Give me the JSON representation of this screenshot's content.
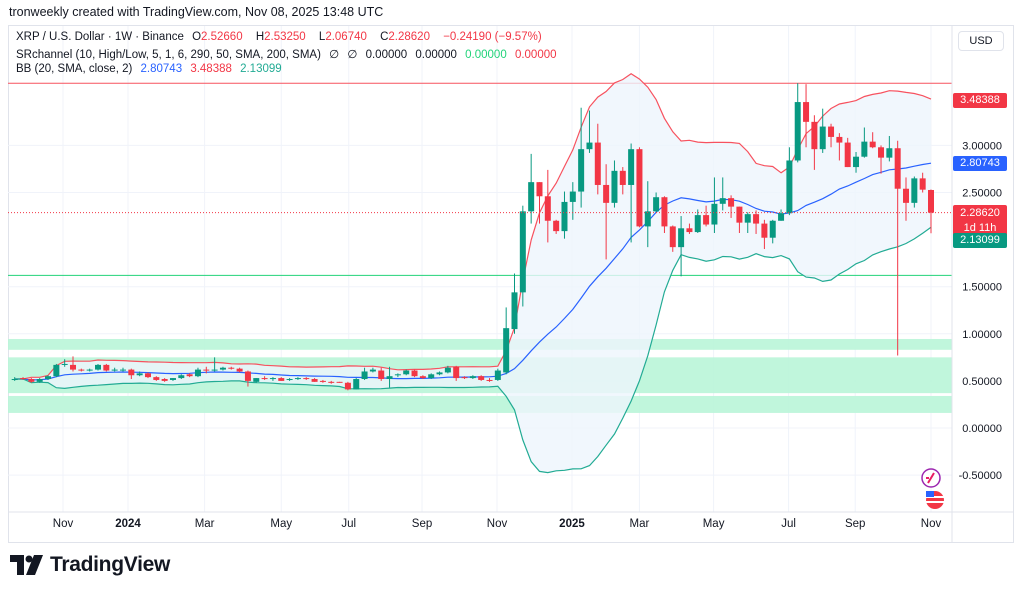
{
  "caption": "tronweekly created with TradingView.com, Nov 08, 2025 13:48 UTC",
  "legend": {
    "symbol": "XRP / U.S. Dollar · 1W · Binance",
    "o_label": "O",
    "o": "2.52660",
    "h_label": "H",
    "h": "2.53250",
    "l_label": "L",
    "l": "2.06740",
    "c_label": "C",
    "c": "2.28620",
    "change": "−0.24190 (−9.57%)",
    "sr_title": "SRchannel (10, High/Low, 5, 1, 6, 290, 50, SMA, 200, SMA)",
    "sr_v1": "∅",
    "sr_v2": "∅",
    "sr_v3": "0.00000",
    "sr_v4": "0.00000",
    "sr_v5": "0.00000",
    "sr_v6": "0.00000",
    "bb_title": "BB (20, SMA, close, 2)",
    "bb_basis": "2.80743",
    "bb_upper": "3.48388",
    "bb_lower": "2.13099"
  },
  "currency_button": "USD",
  "price_tags": {
    "upper": "3.48388",
    "basis": "2.80743",
    "last": "2.28620",
    "countdown": "1d 11h",
    "lower": "2.13099"
  },
  "brand": "TradingView",
  "colors": {
    "up": "#089981",
    "down": "#f23645",
    "bb_upper": "#f7525f",
    "bb_basis": "#2962ff",
    "bb_lower": "#22ab94",
    "zone": "#b9f5d8",
    "band_fill": "#eef5fc"
  },
  "chart_data": {
    "type": "candlestick",
    "title": "XRP / U.S. Dollar · 1W · Binance",
    "ylim": [
      -0.75,
      4.1
    ],
    "y_ticks": [
      "3.00000",
      "2.50000",
      "1.50000",
      "1.00000",
      "0.50000",
      "0.00000",
      "-0.50000"
    ],
    "y_tick_values": [
      3.0,
      2.5,
      1.5,
      1.0,
      0.5,
      0.0,
      -0.5
    ],
    "x_ticks": [
      {
        "label": "Nov",
        "week": 5.8
      },
      {
        "label": "2024",
        "week": 13.6
      },
      {
        "label": "Mar",
        "week": 22.8
      },
      {
        "label": "May",
        "week": 32
      },
      {
        "label": "Jul",
        "week": 40.1
      },
      {
        "label": "Sep",
        "week": 48.9
      },
      {
        "label": "Nov",
        "week": 57.9
      },
      {
        "label": "2025",
        "week": 66.9
      },
      {
        "label": "Mar",
        "week": 75
      },
      {
        "label": "May",
        "week": 83.9
      },
      {
        "label": "Jul",
        "week": 92.9
      },
      {
        "label": "Sep",
        "week": 100.9
      },
      {
        "label": "Nov",
        "week": 110
      }
    ],
    "bollinger": {
      "period": 20,
      "mult": 2
    },
    "sr_zones": [
      [
        0.83,
        0.945
      ],
      [
        0.37,
        0.75
      ],
      [
        0.16,
        0.34
      ]
    ],
    "sr_lines": [
      {
        "price": 3.66,
        "color": "#f7525f"
      },
      {
        "price": 1.62,
        "color": "#22d37a"
      }
    ],
    "ohlc": [
      [
        0.52,
        0.54,
        0.5,
        0.52
      ],
      [
        0.53,
        0.54,
        0.51,
        0.52
      ],
      [
        0.52,
        0.53,
        0.48,
        0.49
      ],
      [
        0.49,
        0.53,
        0.48,
        0.52
      ],
      [
        0.52,
        0.56,
        0.51,
        0.55
      ],
      [
        0.55,
        0.68,
        0.54,
        0.67
      ],
      [
        0.67,
        0.73,
        0.65,
        0.68
      ],
      [
        0.67,
        0.76,
        0.6,
        0.62
      ],
      [
        0.62,
        0.63,
        0.6,
        0.61
      ],
      [
        0.61,
        0.63,
        0.6,
        0.62
      ],
      [
        0.62,
        0.68,
        0.61,
        0.67
      ],
      [
        0.67,
        0.68,
        0.6,
        0.61
      ],
      [
        0.61,
        0.64,
        0.6,
        0.62
      ],
      [
        0.61,
        0.64,
        0.6,
        0.62
      ],
      [
        0.62,
        0.63,
        0.52,
        0.56
      ],
      [
        0.56,
        0.6,
        0.55,
        0.58
      ],
      [
        0.58,
        0.59,
        0.53,
        0.54
      ],
      [
        0.54,
        0.55,
        0.5,
        0.51
      ],
      [
        0.52,
        0.53,
        0.49,
        0.5
      ],
      [
        0.51,
        0.53,
        0.5,
        0.53
      ],
      [
        0.53,
        0.57,
        0.52,
        0.56
      ],
      [
        0.57,
        0.58,
        0.54,
        0.55
      ],
      [
        0.55,
        0.64,
        0.54,
        0.62
      ],
      [
        0.62,
        0.65,
        0.58,
        0.61
      ],
      [
        0.61,
        0.75,
        0.6,
        0.62
      ],
      [
        0.62,
        0.65,
        0.61,
        0.64
      ],
      [
        0.64,
        0.65,
        0.62,
        0.63
      ],
      [
        0.63,
        0.64,
        0.59,
        0.6
      ],
      [
        0.6,
        0.61,
        0.44,
        0.5
      ],
      [
        0.49,
        0.53,
        0.48,
        0.53
      ],
      [
        0.53,
        0.55,
        0.51,
        0.52
      ],
      [
        0.52,
        0.54,
        0.5,
        0.53
      ],
      [
        0.53,
        0.54,
        0.5,
        0.5
      ],
      [
        0.51,
        0.53,
        0.5,
        0.52
      ],
      [
        0.52,
        0.54,
        0.51,
        0.53
      ],
      [
        0.53,
        0.54,
        0.51,
        0.52
      ],
      [
        0.52,
        0.53,
        0.49,
        0.49
      ],
      [
        0.5,
        0.51,
        0.48,
        0.49
      ],
      [
        0.49,
        0.5,
        0.47,
        0.48
      ],
      [
        0.49,
        0.49,
        0.48,
        0.48
      ],
      [
        0.48,
        0.49,
        0.4,
        0.41
      ],
      [
        0.41,
        0.53,
        0.41,
        0.52
      ],
      [
        0.52,
        0.64,
        0.51,
        0.6
      ],
      [
        0.6,
        0.64,
        0.59,
        0.62
      ],
      [
        0.61,
        0.64,
        0.5,
        0.52
      ],
      [
        0.52,
        0.65,
        0.43,
        0.55
      ],
      [
        0.56,
        0.58,
        0.54,
        0.57
      ],
      [
        0.57,
        0.62,
        0.56,
        0.61
      ],
      [
        0.61,
        0.62,
        0.54,
        0.55
      ],
      [
        0.55,
        0.56,
        0.52,
        0.53
      ],
      [
        0.53,
        0.58,
        0.52,
        0.57
      ],
      [
        0.57,
        0.6,
        0.56,
        0.59
      ],
      [
        0.59,
        0.66,
        0.58,
        0.64
      ],
      [
        0.65,
        0.66,
        0.5,
        0.53
      ],
      [
        0.54,
        0.55,
        0.52,
        0.53
      ],
      [
        0.53,
        0.56,
        0.52,
        0.55
      ],
      [
        0.55,
        0.56,
        0.5,
        0.51
      ],
      [
        0.51,
        0.53,
        0.49,
        0.5
      ],
      [
        0.51,
        0.63,
        0.5,
        0.61
      ],
      [
        0.59,
        1.28,
        0.57,
        1.06
      ],
      [
        1.05,
        1.64,
        1.0,
        1.44
      ],
      [
        1.44,
        2.36,
        1.29,
        2.3
      ],
      [
        2.3,
        2.91,
        2.17,
        2.61
      ],
      [
        2.61,
        2.61,
        2.17,
        2.46
      ],
      [
        2.46,
        2.74,
        1.97,
        2.2
      ],
      [
        2.2,
        2.21,
        2.06,
        2.09
      ],
      [
        2.09,
        2.51,
        2.01,
        2.4
      ],
      [
        2.4,
        2.61,
        2.21,
        2.51
      ],
      [
        2.51,
        3.4,
        2.34,
        2.96
      ],
      [
        2.96,
        3.37,
        2.92,
        3.03
      ],
      [
        3.03,
        3.23,
        2.48,
        2.58
      ],
      [
        2.58,
        2.8,
        1.79,
        2.39
      ],
      [
        2.39,
        2.84,
        2.34,
        2.73
      ],
      [
        2.73,
        2.77,
        2.48,
        2.58
      ],
      [
        2.58,
        3.02,
        1.97,
        2.96
      ],
      [
        2.96,
        2.98,
        2.13,
        2.14
      ],
      [
        2.14,
        2.62,
        1.92,
        2.3
      ],
      [
        2.3,
        2.5,
        2.29,
        2.45
      ],
      [
        2.45,
        2.46,
        2.07,
        2.14
      ],
      [
        2.14,
        2.15,
        1.87,
        1.92
      ],
      [
        1.92,
        2.25,
        1.61,
        2.12
      ],
      [
        2.12,
        2.17,
        2.06,
        2.08
      ],
      [
        2.08,
        2.32,
        2.07,
        2.26
      ],
      [
        2.26,
        2.36,
        2.14,
        2.16
      ],
      [
        2.16,
        2.66,
        2.07,
        2.38
      ],
      [
        2.38,
        2.66,
        2.31,
        2.44
      ],
      [
        2.44,
        2.47,
        2.23,
        2.35
      ],
      [
        2.35,
        2.35,
        2.07,
        2.18
      ],
      [
        2.18,
        2.29,
        2.07,
        2.27
      ],
      [
        2.27,
        2.31,
        2.06,
        2.17
      ],
      [
        2.17,
        2.21,
        1.9,
        2.02
      ],
      [
        2.02,
        2.21,
        1.96,
        2.2
      ],
      [
        2.2,
        2.32,
        2.2,
        2.28
      ],
      [
        2.28,
        2.98,
        2.26,
        2.84
      ],
      [
        2.84,
        3.66,
        2.82,
        3.46
      ],
      [
        3.46,
        3.65,
        2.98,
        3.25
      ],
      [
        3.25,
        3.32,
        2.74,
        2.96
      ],
      [
        2.96,
        3.39,
        2.92,
        3.2
      ],
      [
        3.2,
        3.23,
        2.98,
        3.09
      ],
      [
        3.09,
        3.13,
        2.84,
        3.03
      ],
      [
        3.03,
        3.08,
        2.77,
        2.77
      ],
      [
        2.77,
        2.93,
        2.71,
        2.88
      ],
      [
        2.88,
        3.19,
        2.87,
        3.04
      ],
      [
        3.04,
        3.14,
        2.97,
        2.98
      ],
      [
        2.98,
        3.0,
        2.7,
        2.87
      ],
      [
        2.87,
        3.1,
        2.83,
        2.97
      ],
      [
        2.97,
        3.05,
        0.77,
        2.54
      ],
      [
        2.54,
        2.66,
        2.2,
        2.39
      ],
      [
        2.39,
        2.67,
        2.34,
        2.65
      ],
      [
        2.65,
        2.71,
        2.5,
        2.53
      ],
      [
        2.5266,
        2.5325,
        2.0674,
        2.2862
      ]
    ]
  }
}
